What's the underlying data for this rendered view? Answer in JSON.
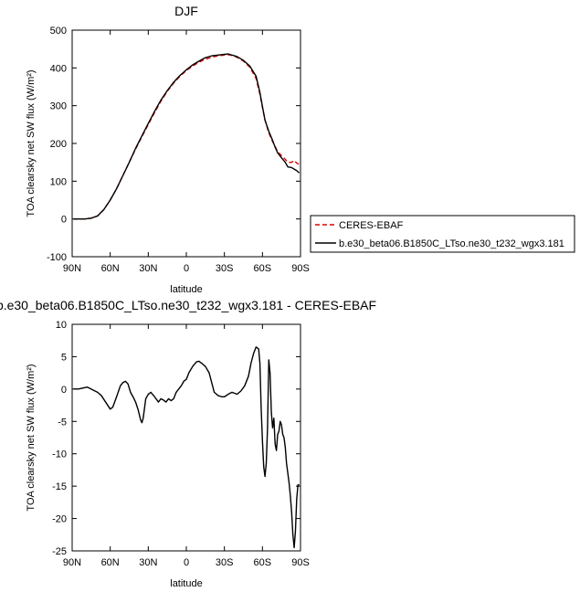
{
  "chart_data": [
    {
      "type": "line",
      "title": "DJF",
      "xlabel": "latitude",
      "ylabel": "TOA clearsky net SW flux (W/m²)",
      "xlim": [
        90,
        -90
      ],
      "ylim": [
        -100,
        500
      ],
      "xticks": [
        90,
        60,
        30,
        0,
        -30,
        -60,
        -90
      ],
      "xtick_labels": [
        "90N",
        "60N",
        "30N",
        "0",
        "30S",
        "60S",
        "90S"
      ],
      "yticks": [
        -100,
        0,
        100,
        200,
        300,
        400,
        500
      ],
      "ytick_labels": [
        "-100",
        "0",
        "100",
        "200",
        "300",
        "400",
        "500"
      ],
      "legend_position": "right",
      "series": [
        {
          "name": "CERES-EBAF",
          "color": "#e00000",
          "dash": "dashed",
          "x": [
            89,
            80,
            75,
            70,
            65,
            60,
            55,
            50,
            45,
            40,
            35,
            30,
            25,
            20,
            15,
            10,
            5,
            0,
            -5,
            -10,
            -15,
            -20,
            -25,
            -30,
            -33,
            -35,
            -40,
            -45,
            -50,
            -55,
            -58,
            -60,
            -62,
            -65,
            -68,
            -70,
            -72,
            -75,
            -78,
            -80,
            -83,
            -85,
            -87,
            -89
          ],
          "y": [
            0,
            0,
            2,
            8,
            25,
            50,
            80,
            115,
            150,
            185,
            218,
            250,
            282,
            312,
            338,
            360,
            378,
            393,
            405,
            415,
            423,
            428,
            432,
            434,
            435,
            434,
            428,
            418,
            402,
            372,
            330,
            295,
            262,
            228,
            205,
            192,
            178,
            168,
            158,
            150,
            150,
            155,
            148,
            145
          ]
        },
        {
          "name": "b.e30_beta06.B1850C_LTso.ne30_t232_wgx3.181",
          "color": "#000000",
          "dash": "solid",
          "x": [
            89,
            80,
            75,
            70,
            65,
            60,
            55,
            50,
            45,
            40,
            35,
            30,
            25,
            20,
            15,
            10,
            5,
            0,
            -5,
            -10,
            -15,
            -20,
            -25,
            -30,
            -33,
            -35,
            -40,
            -45,
            -50,
            -55,
            -58,
            -60,
            -62,
            -65,
            -68,
            -70,
            -72,
            -75,
            -78,
            -80,
            -83,
            -85,
            -87,
            -89
          ],
          "y": [
            0,
            0,
            2,
            8,
            25,
            50,
            80,
            115,
            150,
            187,
            220,
            253,
            285,
            315,
            340,
            362,
            380,
            395,
            408,
            418,
            427,
            432,
            434,
            436,
            437,
            435,
            430,
            420,
            405,
            378,
            335,
            298,
            262,
            232,
            208,
            190,
            175,
            162,
            150,
            138,
            136,
            132,
            128,
            122
          ]
        }
      ]
    },
    {
      "type": "line",
      "title": "b.e30_beta06.B1850C_LTso.ne30_t232_wgx3.181 - CERES-EBAF",
      "xlabel": "latitude",
      "ylabel": "TOA clearsky net SW flux (W/m²)",
      "xlim": [
        90,
        -90
      ],
      "ylim": [
        -25,
        10
      ],
      "xticks": [
        90,
        60,
        30,
        0,
        -30,
        -60,
        -90
      ],
      "xtick_labels": [
        "90N",
        "60N",
        "30N",
        "0",
        "30S",
        "60S",
        "90S"
      ],
      "yticks": [
        -25,
        -20,
        -15,
        -10,
        -5,
        0,
        5,
        10
      ],
      "ytick_labels": [
        "-25",
        "-20",
        "-15",
        "-10",
        "-5",
        "0",
        "5",
        "10"
      ],
      "series": [
        {
          "name": "",
          "color": "#000000",
          "dash": "solid",
          "x": [
            89,
            85,
            78,
            75,
            70,
            67,
            65,
            62,
            60,
            58,
            55,
            52,
            50,
            48,
            46,
            44,
            42,
            40,
            38,
            36,
            35,
            34,
            33,
            32,
            30,
            28,
            25,
            22,
            20,
            18,
            16,
            14,
            12,
            10,
            8,
            6,
            4,
            2,
            0,
            -2,
            -5,
            -8,
            -10,
            -12,
            -15,
            -18,
            -20,
            -22,
            -25,
            -28,
            -30,
            -33,
            -36,
            -40,
            -43,
            -46,
            -49,
            -51,
            -53,
            -55,
            -57,
            -58,
            -59,
            -60,
            -61,
            -62,
            -63,
            -64,
            -65,
            -66,
            -67,
            -68,
            -69,
            -70,
            -71,
            -72,
            -73,
            -74,
            -75,
            -76,
            -77,
            -78,
            -79,
            -80,
            -81,
            -82,
            -83,
            -84,
            -85,
            -86,
            -87,
            -88,
            -89
          ],
          "y": [
            0,
            0,
            0.3,
            0,
            -0.5,
            -1,
            -1.6,
            -2.5,
            -3.1,
            -2.8,
            -1.2,
            0.5,
            1.0,
            1.2,
            0.8,
            -0.5,
            -1.2,
            -2.0,
            -3.2,
            -4.8,
            -5.2,
            -4.5,
            -3.0,
            -1.5,
            -0.8,
            -0.5,
            -1.2,
            -2.0,
            -1.5,
            -1.7,
            -2.0,
            -1.5,
            -1.8,
            -1.5,
            -0.5,
            0.0,
            0.5,
            1.2,
            1.5,
            2.5,
            3.5,
            4.2,
            4.3,
            4.0,
            3.5,
            2.5,
            1.0,
            -0.5,
            -1.0,
            -1.2,
            -1.2,
            -0.8,
            -0.5,
            -0.8,
            -0.3,
            0.5,
            2.0,
            4.0,
            5.5,
            6.5,
            6.2,
            4.0,
            -3.0,
            -8.0,
            -12.0,
            -13.5,
            -11.5,
            -6.0,
            4.5,
            2.5,
            -3.5,
            -6.0,
            -4.5,
            -8.5,
            -9.5,
            -7.0,
            -6.5,
            -5.0,
            -5.5,
            -7.0,
            -7.5,
            -9.0,
            -11.5,
            -13.0,
            -14.5,
            -16.5,
            -19.0,
            -22.5,
            -24.5,
            -22.0,
            -17.0,
            -14.8,
            -14.8
          ]
        }
      ]
    }
  ]
}
